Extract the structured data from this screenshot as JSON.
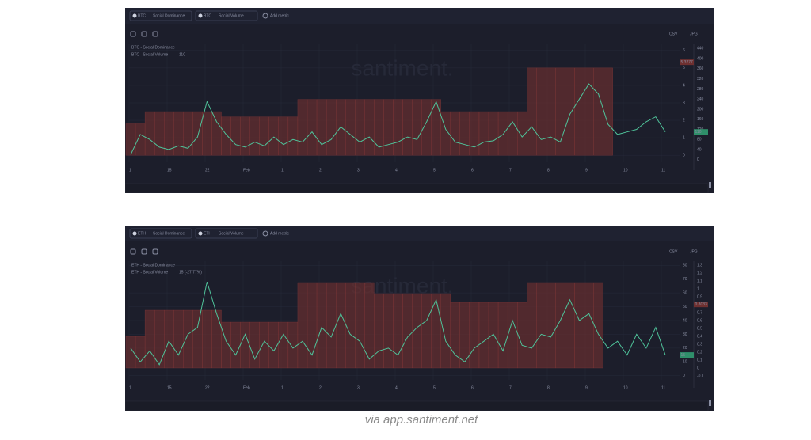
{
  "chart_data": [
    {
      "type": "combo",
      "toolbar": {
        "metrics": [
          {
            "asset": "BTC",
            "metric": "Social Dominance"
          },
          {
            "asset": "BTC",
            "metric": "Social Volume"
          }
        ],
        "add": "Add metric",
        "csv": "CSV",
        "jpg": "JPG"
      },
      "watermark": "santiment.",
      "xtick_labels": [
        "1",
        "15",
        "22",
        "Feb",
        "1",
        "2",
        "3",
        "4",
        "5",
        "6",
        "7",
        "8",
        "9",
        "10",
        "11"
      ],
      "ylim": [
        -0.4,
        6.4
      ],
      "yticks": [
        0,
        1,
        2,
        3,
        4,
        5,
        6
      ],
      "y2lim": [
        -10,
        460
      ],
      "y2ticks": [
        0,
        40,
        80,
        120,
        160,
        200,
        240,
        280,
        320,
        360,
        400,
        440
      ],
      "grid": true,
      "series": [
        {
          "name": "BTC - Social Dominance",
          "kind": "bar",
          "color": "#6e3030",
          "last_value": 5.3277,
          "values": [
            1.8,
            1.8,
            2.5,
            2.5,
            2.5,
            2.5,
            2.5,
            2.5,
            2.5,
            2.5,
            2.2,
            2.2,
            2.2,
            2.2,
            2.2,
            2.2,
            2.2,
            2.2,
            3.2,
            3.2,
            3.2,
            3.2,
            3.2,
            3.2,
            3.2,
            3.2,
            3.2,
            3.2,
            3.2,
            3.2,
            3.2,
            3.2,
            3.2,
            2.5,
            2.5,
            2.5,
            2.5,
            2.5,
            2.5,
            2.5,
            2.5,
            2.5,
            5.0,
            5.0,
            5.0,
            5.0,
            5.0,
            5.0,
            5.0,
            5.0,
            5.0,
            null,
            null,
            null,
            null,
            null,
            null
          ]
        },
        {
          "name": "BTC - Social Volume",
          "kind": "line",
          "axis": "y2",
          "color": "#4fc39a",
          "last_value": 110,
          "legend_value": "110",
          "values": [
            20,
            100,
            80,
            50,
            40,
            55,
            45,
            90,
            230,
            150,
            100,
            60,
            50,
            70,
            55,
            90,
            60,
            80,
            70,
            110,
            60,
            80,
            130,
            100,
            70,
            90,
            50,
            60,
            70,
            90,
            80,
            150,
            230,
            120,
            70,
            60,
            50,
            70,
            75,
            100,
            150,
            90,
            130,
            80,
            90,
            70,
            180,
            240,
            300,
            260,
            140,
            100,
            110,
            120,
            150,
            170,
            110
          ]
        }
      ]
    },
    {
      "type": "combo",
      "toolbar": {
        "metrics": [
          {
            "asset": "ETH",
            "metric": "Social Dominance"
          },
          {
            "asset": "ETH",
            "metric": "Social Volume"
          }
        ],
        "add": "Add metric",
        "csv": "CSV",
        "jpg": "JPG"
      },
      "watermark": "santiment.",
      "xtick_labels": [
        "1",
        "15",
        "22",
        "Feb",
        "1",
        "2",
        "3",
        "4",
        "5",
        "6",
        "7",
        "8",
        "9",
        "10",
        "11"
      ],
      "ylim": [
        -3,
        83
      ],
      "yticks": [
        0,
        10,
        20,
        30,
        40,
        50,
        60,
        70,
        80
      ],
      "y2lim": [
        -0.15,
        1.35
      ],
      "y2ticks": [
        -0.1,
        0,
        0.1,
        0.2,
        0.3,
        0.4,
        0.5,
        0.6,
        0.7,
        0.8,
        0.9,
        1,
        1.1,
        1.2,
        1.3
      ],
      "grid": true,
      "series": [
        {
          "name": "ETH - Social Dominance",
          "kind": "bar",
          "axis": "y2",
          "color": "#6e3030",
          "last_value": 0.8033,
          "values": [
            0.4,
            0.4,
            0.73,
            0.73,
            0.73,
            0.73,
            0.73,
            0.73,
            0.73,
            0.73,
            0.58,
            0.58,
            0.58,
            0.58,
            0.58,
            0.58,
            0.58,
            0.58,
            1.08,
            1.08,
            1.08,
            1.08,
            1.08,
            1.08,
            1.08,
            1.08,
            0.94,
            0.94,
            0.94,
            0.94,
            0.94,
            0.94,
            0.94,
            0.94,
            0.83,
            0.83,
            0.83,
            0.83,
            0.83,
            0.83,
            0.83,
            0.83,
            1.08,
            1.08,
            1.08,
            1.08,
            1.08,
            1.08,
            1.08,
            1.08,
            null,
            null,
            null,
            null,
            null,
            null,
            null
          ]
        },
        {
          "name": "ETH - Social Volume",
          "kind": "line",
          "color": "#4fc39a",
          "last_value": 15,
          "legend_value": "15 (-27.77%)",
          "values": [
            20,
            10,
            18,
            8,
            25,
            15,
            30,
            35,
            68,
            45,
            25,
            15,
            30,
            12,
            25,
            18,
            30,
            20,
            25,
            15,
            35,
            28,
            45,
            30,
            25,
            12,
            18,
            20,
            15,
            28,
            35,
            40,
            55,
            25,
            15,
            10,
            20,
            25,
            30,
            18,
            40,
            22,
            20,
            30,
            28,
            40,
            55,
            40,
            45,
            30,
            20,
            25,
            15,
            30,
            20,
            35,
            15
          ]
        }
      ]
    }
  ],
  "caption": "via app.santiment.net"
}
